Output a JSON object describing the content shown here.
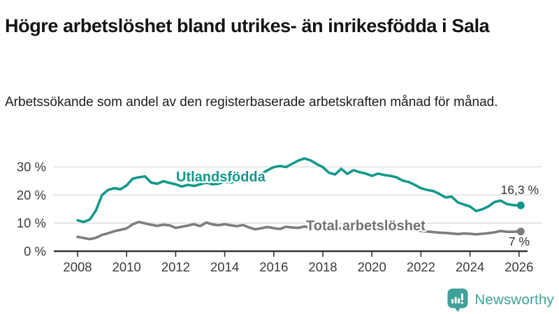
{
  "title": "Högre arbetslöshet bland utrikes- än inrikesfödda i Sala",
  "subtitle": "Arbetssökande som andel av den registerbaserade arbetskraften månad för månad.",
  "branding": {
    "logo_text": "Newsworthy",
    "logo_icon": "bar-chart-speech-bubble-icon",
    "logo_color": "#3fa19a"
  },
  "chart_data": {
    "type": "line",
    "title": "",
    "xlabel": "",
    "ylabel": "",
    "grid": true,
    "legend_position": "inline-labels-on-lines",
    "x_start": 2008.0,
    "x_step": 0.25,
    "xlim": [
      2007.7,
      2026.6
    ],
    "ylim": [
      0,
      35
    ],
    "x_ticks": [
      "2008",
      "2010",
      "2012",
      "2014",
      "2016",
      "2018",
      "2020",
      "2022",
      "2024",
      "2026"
    ],
    "y_ticks": [
      "0 %",
      "10 %",
      "20 %",
      "30 %"
    ],
    "y_tick_values": [
      0,
      10,
      20,
      30
    ],
    "axis_color": "#333333",
    "grid_color": "#d9d9d9",
    "series": [
      {
        "name": "Utlandsfödda",
        "color": "#12988b",
        "label_color": "#12988b",
        "end_label": "16,3 %",
        "end_value": 16.3,
        "values": [
          11.0,
          10.4,
          11.3,
          14.5,
          20.0,
          21.8,
          22.4,
          22.0,
          23.4,
          25.8,
          26.3,
          26.6,
          24.4,
          24.0,
          24.9,
          24.3,
          23.8,
          23.0,
          23.6,
          23.2,
          23.8,
          24.4,
          23.8,
          24.0,
          24.8,
          24.4,
          25.0,
          25.3,
          25.6,
          26.4,
          27.5,
          28.8,
          29.9,
          30.3,
          29.9,
          31.1,
          32.2,
          33.0,
          32.3,
          31.0,
          29.9,
          27.9,
          27.3,
          29.3,
          27.5,
          28.8,
          28.1,
          27.6,
          26.8,
          27.6,
          27.1,
          26.8,
          26.3,
          25.1,
          24.6,
          23.6,
          22.4,
          21.8,
          21.4,
          20.4,
          19.1,
          19.4,
          17.4,
          16.6,
          15.9,
          14.3,
          14.9,
          15.9,
          17.5,
          18.0,
          16.8,
          16.4,
          16.3
        ]
      },
      {
        "name": "Total arbetslöshet",
        "color": "#7d7d81",
        "label_color": "#717175",
        "end_label": "7 %",
        "end_value": 7,
        "values": [
          5.1,
          4.7,
          4.3,
          4.8,
          5.8,
          6.4,
          7.1,
          7.6,
          8.1,
          9.6,
          10.4,
          9.9,
          9.4,
          9.0,
          9.4,
          9.2,
          8.3,
          8.7,
          9.1,
          9.6,
          8.9,
          10.2,
          9.5,
          9.2,
          9.6,
          9.2,
          8.9,
          9.3,
          8.4,
          7.8,
          8.2,
          8.6,
          8.2,
          7.9,
          8.7,
          8.4,
          8.3,
          8.8,
          8.3,
          8.5,
          8.4,
          8.0,
          8.3,
          8.1,
          7.9,
          8.2,
          8.0,
          8.3,
          8.2,
          8.8,
          9.0,
          8.7,
          8.5,
          8.2,
          7.9,
          7.5,
          7.2,
          7.0,
          6.8,
          6.6,
          6.5,
          6.3,
          6.1,
          6.3,
          6.2,
          6.0,
          6.2,
          6.4,
          6.7,
          7.2,
          6.9,
          6.9,
          7.0
        ]
      }
    ]
  }
}
